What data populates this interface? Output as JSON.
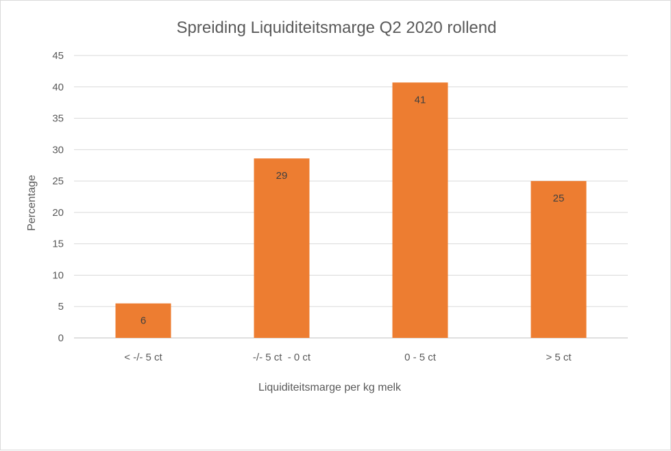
{
  "chart_data": {
    "type": "bar",
    "title": "Spreiding Liquiditeitsmarge Q2 2020 rollend",
    "xlabel": "Liquiditeitsmarge per kg melk",
    "ylabel": "Percentage",
    "categories": [
      "< -/- 5 ct",
      "-/- 5 ct  - 0 ct",
      "0 - 5 ct",
      "> 5 ct"
    ],
    "values": [
      5.5,
      28.6,
      40.7,
      25
    ],
    "data_labels": [
      "6",
      "29",
      "41",
      "25"
    ],
    "ylim": [
      0,
      45
    ],
    "yticks": [
      0,
      5,
      10,
      15,
      20,
      25,
      30,
      35,
      40,
      45
    ],
    "grid": true,
    "legend": "none",
    "bar_color": "#ED7D31",
    "grid_color": "#d9d9d9"
  }
}
